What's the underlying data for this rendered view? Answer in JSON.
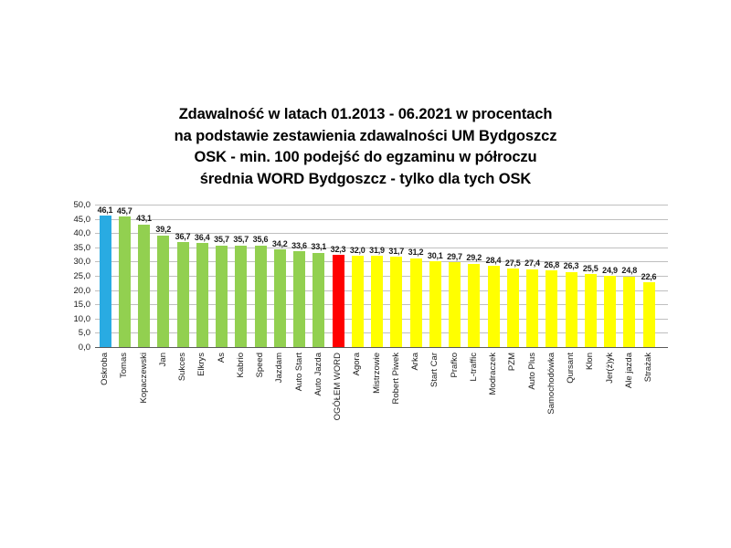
{
  "chart_data": {
    "type": "bar",
    "title": "Zdawalność w latach 01.2013 - 06.2021 w procentach",
    "title_lines": [
      "Zdawalność w latach 01.2013 - 06.2021 w procentach",
      "na podstawie zestawienia zdawalności UM Bydgoszcz",
      "OSK - min. 100 podejść do egzaminu w półroczu",
      "średnia WORD Bydgoszcz - tylko dla tych OSK"
    ],
    "xlabel": "",
    "ylabel": "",
    "ylim": [
      0,
      50
    ],
    "ytick_step": 5,
    "ytick_labels": [
      "0,0",
      "5,0",
      "10,0",
      "15,0",
      "20,0",
      "25,0",
      "30,0",
      "35,0",
      "40,0",
      "45,0",
      "50,0"
    ],
    "grid": true,
    "legend": "none",
    "categories": [
      "Oskroba",
      "Tomas",
      "Kopaczewski",
      "Jan",
      "Sukces",
      "Elkrys",
      "As",
      "Kabrio",
      "Speed",
      "Jazdam",
      "Auto Start",
      "Auto Jazda",
      "OGÓŁEM WORD",
      "Agora",
      "Mistrzowie",
      "Robert Piwek",
      "Arka",
      "Start Car",
      "Prafko",
      "L-traffic",
      "Modraczek",
      "PZM",
      "Auto Plus",
      "Samochodówka",
      "Qursant",
      "Klon",
      "Jer(ż)yk",
      "Ale jazda",
      "Strażak"
    ],
    "values": [
      46.1,
      45.7,
      43.1,
      39.2,
      36.7,
      36.4,
      35.7,
      35.7,
      35.6,
      34.2,
      33.6,
      33.1,
      32.3,
      32.0,
      31.9,
      31.7,
      31.2,
      30.1,
      29.7,
      29.2,
      28.4,
      27.5,
      27.4,
      26.8,
      26.3,
      25.5,
      24.9,
      24.8,
      22.6
    ],
    "value_labels": [
      "46,1",
      "45,7",
      "43,1",
      "39,2",
      "36,7",
      "36,4",
      "35,7",
      "35,7",
      "35,6",
      "34,2",
      "33,6",
      "33,1",
      "32,3",
      "32,0",
      "31,9",
      "31,7",
      "31,2",
      "30,1",
      "29,7",
      "29,2",
      "28,4",
      "27,5",
      "27,4",
      "26,8",
      "26,3",
      "25,5",
      "24,9",
      "24,8",
      "22,6"
    ],
    "bar_colors": [
      "#29ABE2",
      "#92D050",
      "#92D050",
      "#92D050",
      "#92D050",
      "#92D050",
      "#92D050",
      "#92D050",
      "#92D050",
      "#92D050",
      "#92D050",
      "#92D050",
      "#FF0000",
      "#FFFF00",
      "#FFFF00",
      "#FFFF00",
      "#FFFF00",
      "#FFFF00",
      "#FFFF00",
      "#FFFF00",
      "#FFFF00",
      "#FFFF00",
      "#FFFF00",
      "#FFFF00",
      "#FFFF00",
      "#FFFF00",
      "#FFFF00",
      "#FFFF00",
      "#FFFF00"
    ],
    "colors": {
      "first_bar_highlight": "#29ABE2",
      "green_group": "#92D050",
      "word_average_bar": "#FF0000",
      "yellow_group": "#FFFF00",
      "gridline": "#bfbfbf",
      "axis_line": "#595959"
    }
  }
}
